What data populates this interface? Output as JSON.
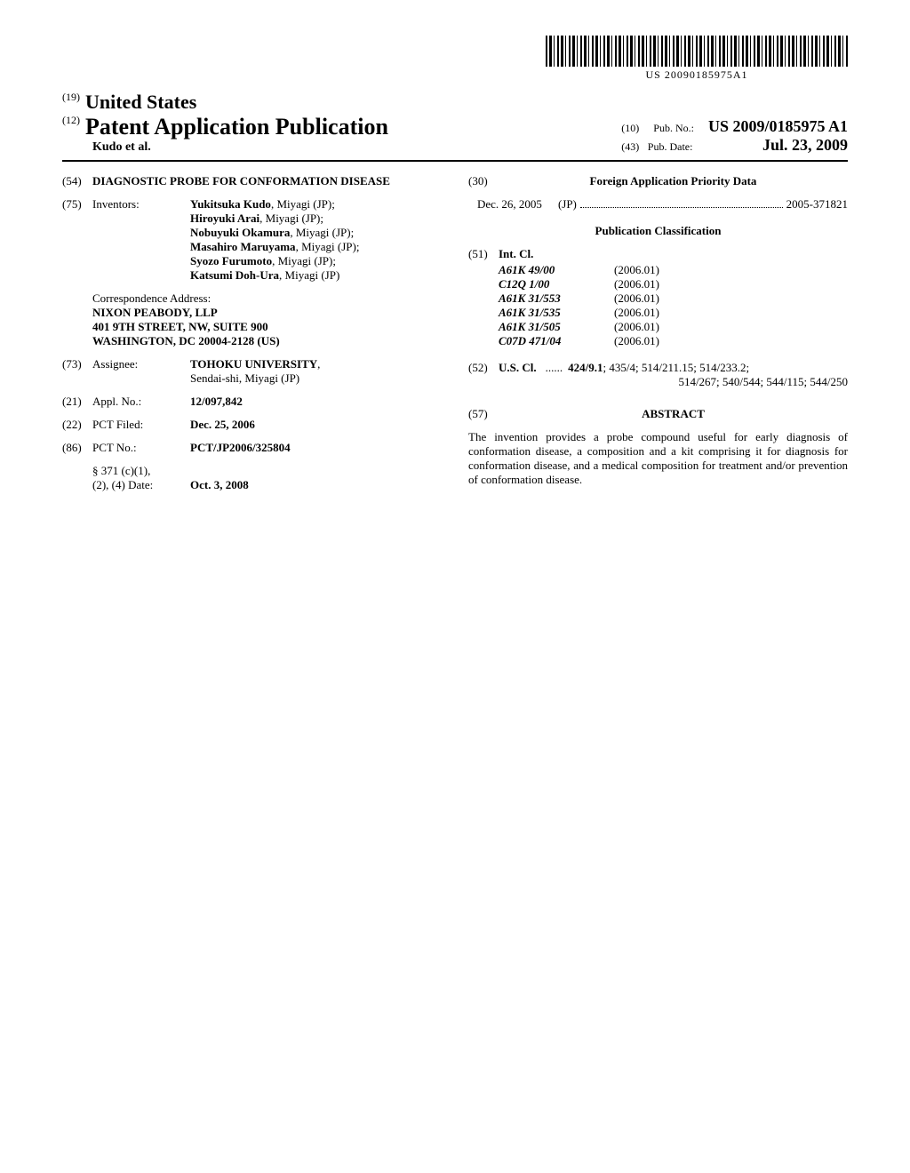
{
  "barcode_text": "US 20090185975A1",
  "header": {
    "country_code": "(19)",
    "country": "United States",
    "doc_code": "(12)",
    "doc_type": "Patent Application Publication",
    "authors_line": "Kudo et al.",
    "pubno_code": "(10)",
    "pubno_label": "Pub. No.:",
    "pubno": "US 2009/0185975 A1",
    "pubdate_code": "(43)",
    "pubdate_label": "Pub. Date:",
    "pubdate": "Jul. 23, 2009"
  },
  "title": {
    "code": "(54)",
    "text": "DIAGNOSTIC PROBE FOR CONFORMATION DISEASE"
  },
  "inventors": {
    "code": "(75)",
    "label": "Inventors:",
    "list": [
      {
        "name": "Yukitsuka Kudo",
        "loc": ", Miyagi (JP);"
      },
      {
        "name": "Hiroyuki Arai",
        "loc": ", Miyagi (JP);"
      },
      {
        "name": "Nobuyuki Okamura",
        "loc": ", Miyagi (JP);"
      },
      {
        "name": "Masahiro Maruyama",
        "loc": ", Miyagi (JP);"
      },
      {
        "name": "Syozo Furumoto",
        "loc": ", Miyagi (JP);"
      },
      {
        "name": "Katsumi Doh-Ura",
        "loc": ", Miyagi (JP)"
      }
    ]
  },
  "correspondence": {
    "label": "Correspondence Address:",
    "lines": [
      "NIXON PEABODY, LLP",
      "401 9TH STREET, NW, SUITE 900",
      "WASHINGTON, DC 20004-2128 (US)"
    ]
  },
  "assignee": {
    "code": "(73)",
    "label": "Assignee:",
    "name": "TOHOKU UNIVERSITY",
    "loc": "Sendai-shi, Miyagi (JP)"
  },
  "applno": {
    "code": "(21)",
    "label": "Appl. No.:",
    "value": "12/097,842"
  },
  "pctfiled": {
    "code": "(22)",
    "label": "PCT Filed:",
    "value": "Dec. 25, 2006"
  },
  "pctno": {
    "code": "(86)",
    "label": "PCT No.:",
    "value": "PCT/JP2006/325804",
    "s371_label": "§ 371 (c)(1),\n(2), (4) Date:",
    "s371_value": "Oct. 3, 2008"
  },
  "foreign": {
    "code": "(30)",
    "heading": "Foreign Application Priority Data",
    "date": "Dec. 26, 2005",
    "country": "(JP)",
    "number": "2005-371821"
  },
  "pubclass_heading": "Publication Classification",
  "intcl": {
    "code": "(51)",
    "label": "Int. Cl.",
    "items": [
      {
        "code": "A61K 49/00",
        "date": "(2006.01)"
      },
      {
        "code": "C12Q 1/00",
        "date": "(2006.01)"
      },
      {
        "code": "A61K 31/553",
        "date": "(2006.01)"
      },
      {
        "code": "A61K 31/535",
        "date": "(2006.01)"
      },
      {
        "code": "A61K 31/505",
        "date": "(2006.01)"
      },
      {
        "code": "C07D 471/04",
        "date": "(2006.01)"
      }
    ]
  },
  "uscl": {
    "code": "(52)",
    "label": "U.S. Cl.",
    "line1": "424/9.1",
    "line1_rest": "; 435/4; 514/211.15; 514/233.2;",
    "line2": "514/267; 540/544; 544/115; 544/250"
  },
  "abstract": {
    "code": "(57)",
    "heading": "ABSTRACT",
    "text": "The invention provides a probe compound useful for early diagnosis of conformation disease, a composition and a kit comprising it for diagnosis for conformation disease, and a medical composition for treatment and/or prevention of conformation disease."
  }
}
